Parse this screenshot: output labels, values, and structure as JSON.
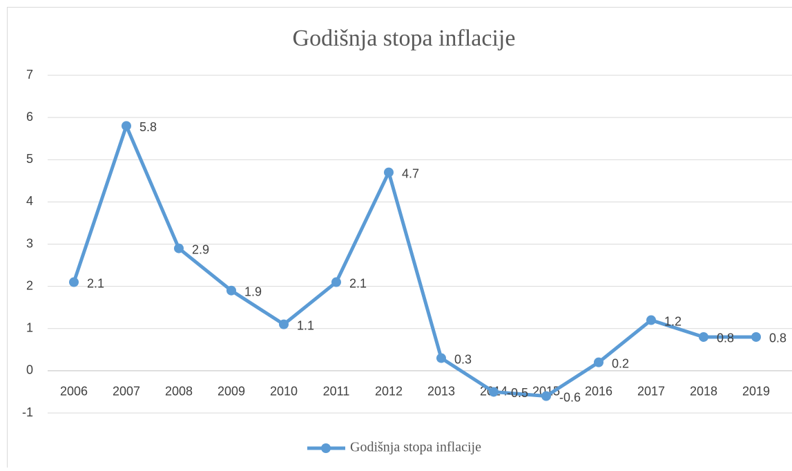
{
  "chart_data": {
    "type": "line",
    "title": "Godišnja stopa inflacije",
    "categories": [
      "2006",
      "2007",
      "2008",
      "2009",
      "2010",
      "2011",
      "2012",
      "2013",
      "2014",
      "2015",
      "2016",
      "2017",
      "2018",
      "2019"
    ],
    "series": [
      {
        "name": "Godišnja stopa inflacije",
        "color": "#5b9bd5",
        "values": [
          2.1,
          5.8,
          2.9,
          1.9,
          1.1,
          2.1,
          4.7,
          0.3,
          -0.5,
          -0.6,
          0.2,
          1.2,
          0.8,
          0.8
        ]
      }
    ],
    "ylim": [
      -1,
      7
    ],
    "yticks": [
      -1,
      0,
      1,
      2,
      3,
      4,
      5,
      6,
      7
    ],
    "grid": true,
    "legend": "bottom"
  }
}
